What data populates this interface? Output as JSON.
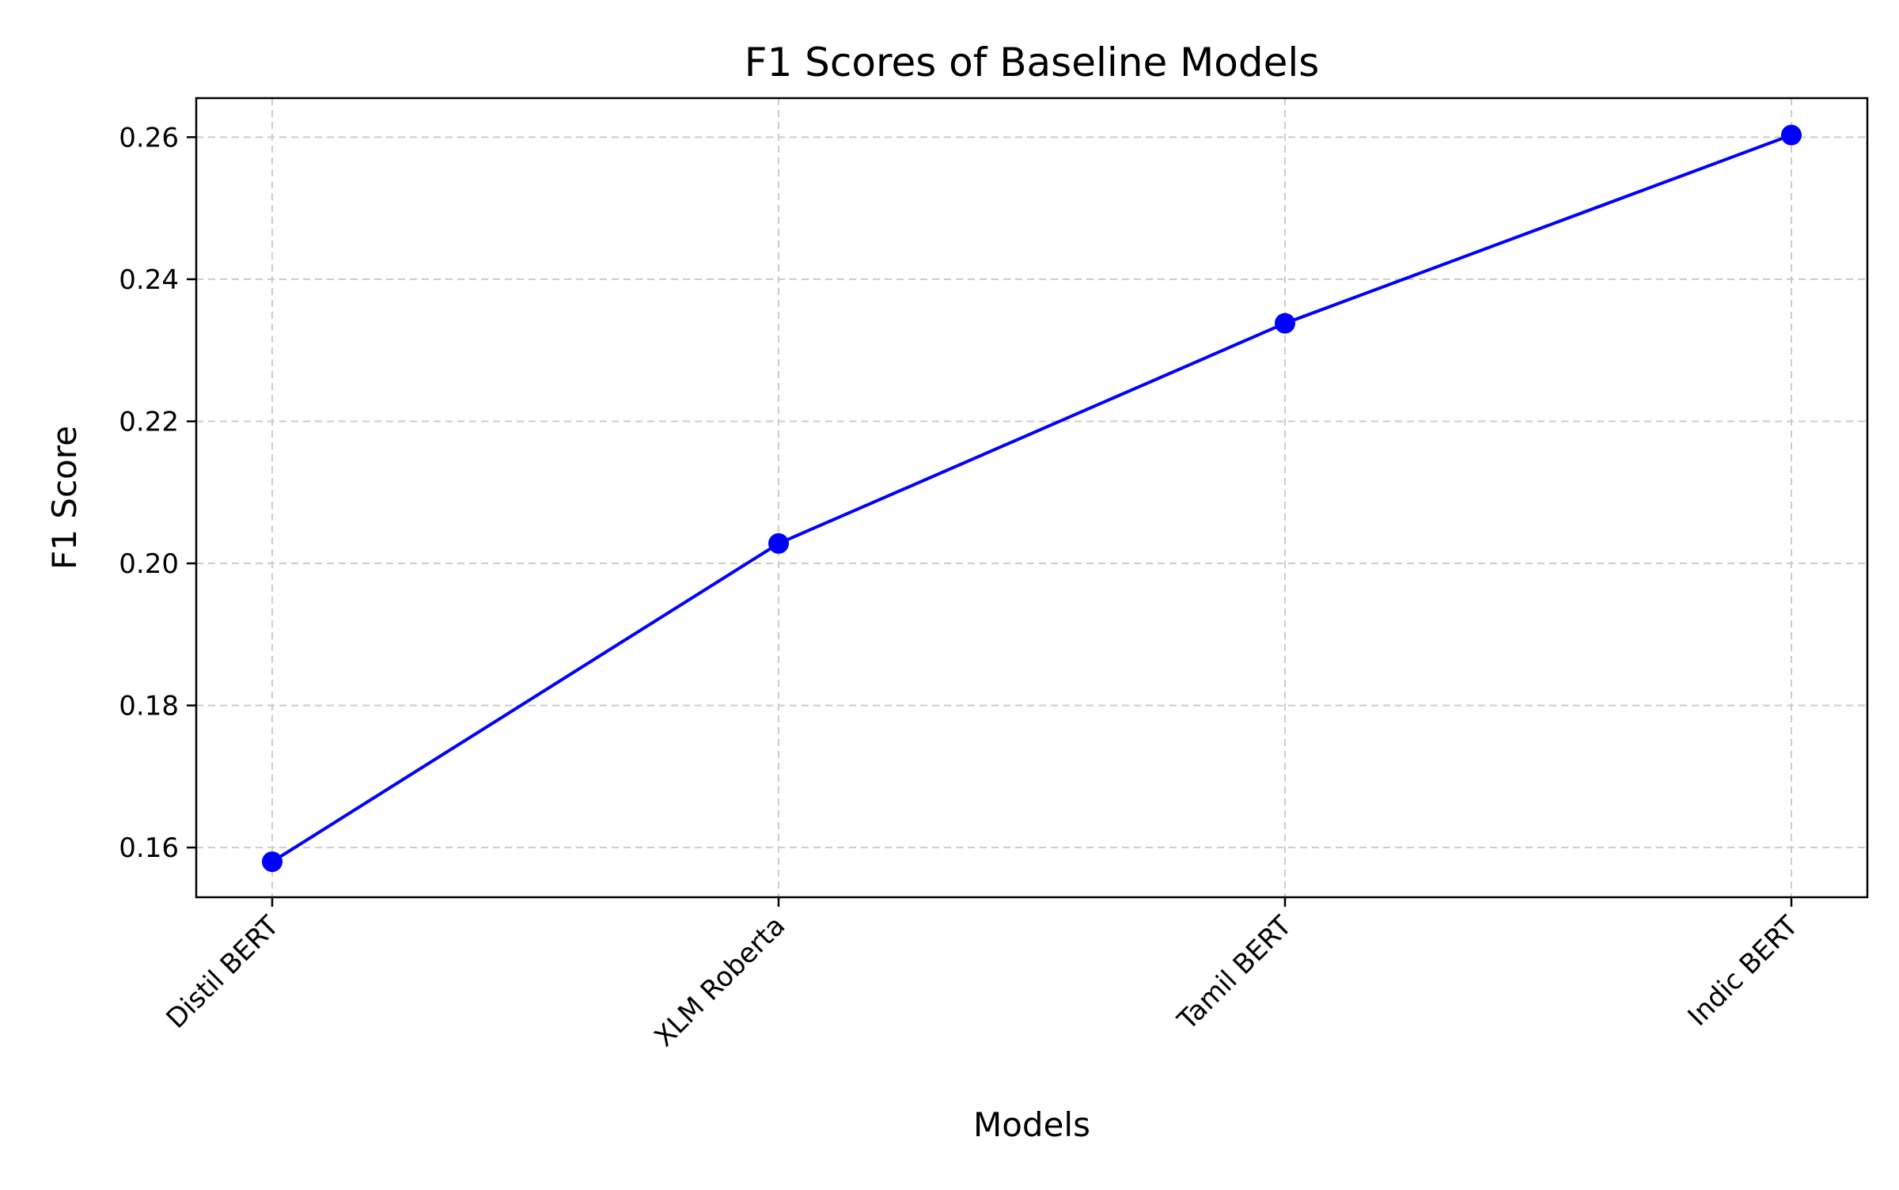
{
  "chart_data": {
    "type": "line",
    "title": "F1 Scores of Baseline Models",
    "xlabel": "Models",
    "ylabel": "F1 Score",
    "categories": [
      "Distil BERT",
      "XLM Roberta",
      "Tamil BERT",
      "Indic BERT"
    ],
    "series": [
      {
        "values": [
          0.158,
          0.2028,
          0.2338,
          0.2603
        ],
        "color": "#0000ff",
        "marker": "circle"
      }
    ],
    "ylim": [
      0.153,
      0.2655
    ],
    "yticks": [
      0.16,
      0.18,
      0.2,
      0.22,
      0.24,
      0.26
    ],
    "ytick_labels": [
      "0.16",
      "0.18",
      "0.20",
      "0.22",
      "0.24",
      "0.26"
    ],
    "grid": true,
    "grid_style": "dashed",
    "grid_color": "#cccccc",
    "legend": "none"
  }
}
